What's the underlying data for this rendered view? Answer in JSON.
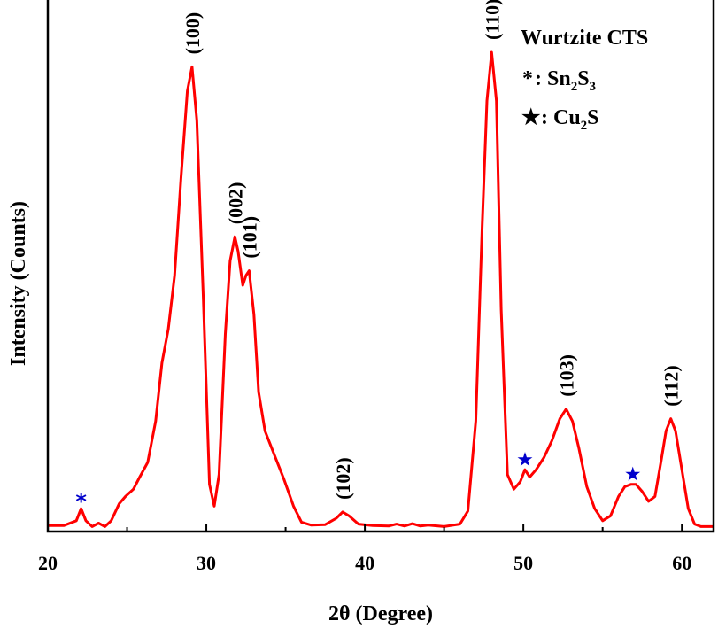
{
  "chart_data": {
    "type": "line",
    "title": "",
    "xlabel": "2θ (Degree)",
    "ylabel": "Intensity (Counts)",
    "xlim": [
      20,
      62
    ],
    "ylim": [
      0,
      100
    ],
    "x_ticks": [
      20,
      30,
      40,
      50,
      60
    ],
    "y_ticks_shown": false,
    "grid": false,
    "line_color": "#ff0000",
    "marker_color": "#0000cc",
    "series": [
      {
        "x": [
          20.0,
          21.0,
          21.8,
          22.1,
          22.4,
          22.8,
          23.2,
          23.6,
          24.0,
          24.5,
          24.9,
          25.4,
          25.8,
          26.3,
          26.8,
          27.2,
          27.6,
          28.0,
          28.4,
          28.8,
          29.1,
          29.4,
          29.8,
          30.2,
          30.5,
          30.8,
          31.2,
          31.5,
          31.8,
          32.0,
          32.3,
          32.5,
          32.7,
          33.0,
          33.3,
          33.7,
          34.3,
          34.9,
          35.5,
          36.0,
          36.6,
          37.5,
          38.2,
          38.6,
          39.0,
          39.6,
          40.5,
          41.5,
          42.0,
          42.5,
          43.0,
          43.5,
          44.0,
          45.0,
          46.0,
          46.5,
          47.0,
          47.4,
          47.7,
          48.0,
          48.3,
          48.6,
          49.0,
          49.4,
          49.8,
          50.1,
          50.4,
          50.8,
          51.3,
          51.8,
          52.3,
          52.7,
          53.1,
          53.5,
          54.0,
          54.5,
          55.0,
          55.5,
          56.0,
          56.4,
          56.8,
          57.1,
          57.5,
          57.9,
          58.3,
          58.7,
          59.0,
          59.3,
          59.6,
          60.0,
          60.4,
          60.8,
          61.2,
          62.0
        ],
        "y": [
          0.5,
          0.5,
          1.5,
          4.0,
          1.5,
          0.3,
          1.0,
          0.3,
          1.5,
          5.0,
          6.5,
          8.0,
          10.5,
          13.5,
          22.0,
          34.0,
          41.0,
          52.0,
          72.0,
          90.0,
          95.0,
          84.0,
          48.0,
          9.0,
          4.5,
          11.0,
          40.0,
          55.0,
          60.0,
          57.0,
          50.0,
          52.0,
          53.0,
          44.0,
          28.0,
          20.0,
          15.0,
          10.0,
          4.5,
          1.2,
          0.6,
          0.7,
          2.0,
          3.3,
          2.5,
          0.8,
          0.5,
          0.4,
          0.8,
          0.4,
          0.9,
          0.4,
          0.6,
          0.3,
          0.8,
          3.5,
          22.0,
          62.0,
          88.0,
          98.0,
          88.0,
          45.0,
          11.0,
          8.0,
          9.5,
          12.0,
          10.5,
          12.0,
          14.5,
          18.0,
          22.5,
          24.5,
          22.0,
          16.5,
          8.5,
          4.0,
          1.5,
          2.5,
          6.5,
          8.5,
          9.0,
          9.0,
          7.5,
          5.5,
          6.5,
          14.0,
          20.0,
          22.5,
          20.0,
          12.0,
          4.0,
          0.8,
          0.3,
          0.3
        ]
      }
    ],
    "peak_labels": [
      {
        "text": "(100)",
        "x": 29.1,
        "y": 95.0
      },
      {
        "text": "(002)",
        "x": 31.8,
        "y": 60.0
      },
      {
        "text": "(101)",
        "x": 32.7,
        "y": 53.0
      },
      {
        "text": "(102)",
        "x": 38.6,
        "y": 3.3
      },
      {
        "text": "(110)",
        "x": 48.0,
        "y": 98.0
      },
      {
        "text": "(103)",
        "x": 52.7,
        "y": 24.5
      },
      {
        "text": "(112)",
        "x": 59.3,
        "y": 22.5
      }
    ],
    "markers": [
      {
        "symbol": "*",
        "x": 22.1,
        "y": 4.0
      },
      {
        "symbol": "★",
        "x": 50.1,
        "y": 12.0
      },
      {
        "symbol": "★",
        "x": 56.9,
        "y": 9.0
      }
    ],
    "legend": {
      "position": "top-right",
      "title": "Wurtzite CTS",
      "entries": [
        {
          "symbol": "*",
          "label_parts": [
            ": Sn",
            "2",
            "S",
            "3"
          ]
        },
        {
          "symbol": "★",
          "label_parts": [
            ": Cu",
            "2",
            "S",
            ""
          ]
        }
      ]
    }
  }
}
